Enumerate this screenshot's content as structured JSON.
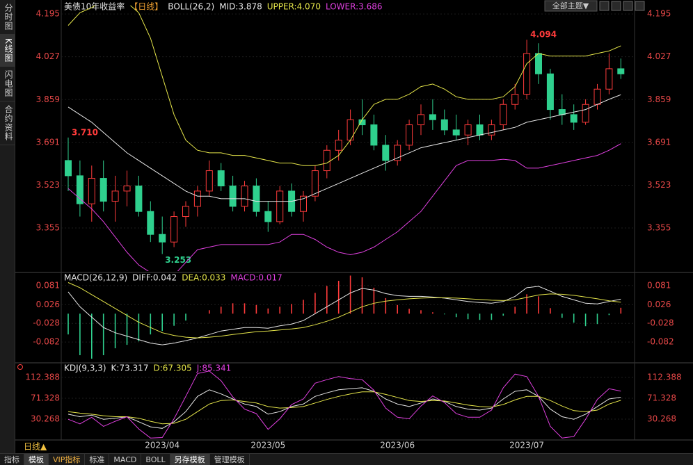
{
  "sidebar": [
    "分时图",
    "K线图",
    "闪电图",
    "合约资料"
  ],
  "toolbar": {
    "theme": "全部主题▼"
  },
  "footer": {
    "period": "日线▲",
    "tabs": [
      "指标",
      "模板",
      "VIP指标",
      "标准",
      "MACD",
      "BOLL",
      "另存模板",
      "管理模板"
    ]
  },
  "chart_data": [
    {
      "type": "candlestick",
      "title": "美债10年收益率",
      "period": "【日线】",
      "indicator": "BOLL(26,2)",
      "up_color": "#ff3b3b",
      "down_color": "#2fd08e",
      "ylim": [
        3.186,
        4.228
      ],
      "yticks": [
        4.195,
        4.027,
        3.859,
        3.691,
        3.523,
        3.355
      ],
      "grid": true,
      "ohlc": [
        [
          3.62,
          3.71,
          3.5,
          3.56
        ],
        [
          3.56,
          3.62,
          3.4,
          3.45
        ],
        [
          3.45,
          3.6,
          3.38,
          3.55
        ],
        [
          3.55,
          3.62,
          3.42,
          3.46
        ],
        [
          3.46,
          3.56,
          3.38,
          3.5
        ],
        [
          3.5,
          3.58,
          3.44,
          3.52
        ],
        [
          3.52,
          3.56,
          3.4,
          3.42
        ],
        [
          3.42,
          3.46,
          3.3,
          3.33
        ],
        [
          3.33,
          3.4,
          3.253,
          3.3
        ],
        [
          3.3,
          3.42,
          3.28,
          3.4
        ],
        [
          3.4,
          3.46,
          3.36,
          3.44
        ],
        [
          3.44,
          3.52,
          3.4,
          3.5
        ],
        [
          3.5,
          3.62,
          3.48,
          3.58
        ],
        [
          3.58,
          3.61,
          3.5,
          3.52
        ],
        [
          3.52,
          3.56,
          3.42,
          3.44
        ],
        [
          3.44,
          3.54,
          3.42,
          3.52
        ],
        [
          3.52,
          3.55,
          3.4,
          3.42
        ],
        [
          3.42,
          3.46,
          3.34,
          3.38
        ],
        [
          3.38,
          3.52,
          3.37,
          3.5
        ],
        [
          3.5,
          3.53,
          3.4,
          3.42
        ],
        [
          3.42,
          3.5,
          3.38,
          3.48
        ],
        [
          3.48,
          3.6,
          3.46,
          3.58
        ],
        [
          3.58,
          3.68,
          3.55,
          3.66
        ],
        [
          3.66,
          3.74,
          3.62,
          3.7
        ],
        [
          3.7,
          3.82,
          3.68,
          3.78
        ],
        [
          3.78,
          3.86,
          3.72,
          3.76
        ],
        [
          3.76,
          3.8,
          3.66,
          3.68
        ],
        [
          3.68,
          3.72,
          3.58,
          3.62
        ],
        [
          3.62,
          3.7,
          3.6,
          3.68
        ],
        [
          3.68,
          3.78,
          3.66,
          3.76
        ],
        [
          3.76,
          3.84,
          3.72,
          3.8
        ],
        [
          3.8,
          3.86,
          3.74,
          3.78
        ],
        [
          3.78,
          3.82,
          3.72,
          3.74
        ],
        [
          3.74,
          3.8,
          3.7,
          3.72
        ],
        [
          3.72,
          3.78,
          3.68,
          3.76
        ],
        [
          3.76,
          3.8,
          3.7,
          3.72
        ],
        [
          3.72,
          3.78,
          3.7,
          3.76
        ],
        [
          3.76,
          3.86,
          3.74,
          3.84
        ],
        [
          3.84,
          3.92,
          3.82,
          3.88
        ],
        [
          3.88,
          4.094,
          3.86,
          4.04
        ],
        [
          4.04,
          4.08,
          3.92,
          3.96
        ],
        [
          3.96,
          3.98,
          3.78,
          3.82
        ],
        [
          3.82,
          3.88,
          3.76,
          3.8
        ],
        [
          3.8,
          3.84,
          3.74,
          3.77
        ],
        [
          3.77,
          3.86,
          3.76,
          3.84
        ],
        [
          3.84,
          3.92,
          3.82,
          3.9
        ],
        [
          3.9,
          4.04,
          3.88,
          3.98
        ],
        [
          3.98,
          4.02,
          3.94,
          3.96
        ]
      ],
      "series": [
        {
          "label": "MID:3.878",
          "color": "#e8e8e8",
          "values": [
            3.83,
            3.8,
            3.77,
            3.73,
            3.69,
            3.65,
            3.62,
            3.59,
            3.56,
            3.53,
            3.5,
            3.48,
            3.48,
            3.47,
            3.47,
            3.47,
            3.46,
            3.46,
            3.46,
            3.46,
            3.47,
            3.49,
            3.51,
            3.53,
            3.55,
            3.57,
            3.59,
            3.61,
            3.63,
            3.65,
            3.67,
            3.68,
            3.69,
            3.7,
            3.71,
            3.72,
            3.73,
            3.74,
            3.75,
            3.77,
            3.78,
            3.79,
            3.8,
            3.81,
            3.82,
            3.84,
            3.86,
            3.878
          ]
        },
        {
          "label": "UPPER:4.070",
          "color": "#e6e64a",
          "values": [
            4.15,
            4.2,
            4.22,
            4.25,
            4.25,
            4.24,
            4.2,
            4.1,
            3.95,
            3.8,
            3.7,
            3.66,
            3.65,
            3.65,
            3.64,
            3.64,
            3.63,
            3.62,
            3.61,
            3.61,
            3.6,
            3.6,
            3.61,
            3.64,
            3.7,
            3.78,
            3.84,
            3.86,
            3.86,
            3.88,
            3.91,
            3.92,
            3.9,
            3.87,
            3.86,
            3.86,
            3.86,
            3.87,
            3.91,
            4.0,
            4.04,
            4.03,
            4.03,
            4.03,
            4.03,
            4.04,
            4.05,
            4.07
          ]
        },
        {
          "label": "LOWER:3.686",
          "color": "#e040e0",
          "values": [
            3.51,
            3.47,
            3.43,
            3.38,
            3.32,
            3.26,
            3.21,
            3.18,
            3.17,
            3.17,
            3.22,
            3.27,
            3.28,
            3.29,
            3.29,
            3.29,
            3.29,
            3.29,
            3.3,
            3.33,
            3.33,
            3.31,
            3.28,
            3.26,
            3.25,
            3.26,
            3.28,
            3.31,
            3.34,
            3.38,
            3.42,
            3.48,
            3.54,
            3.6,
            3.62,
            3.62,
            3.62,
            3.625,
            3.62,
            3.59,
            3.59,
            3.6,
            3.61,
            3.62,
            3.63,
            3.64,
            3.66,
            3.686
          ]
        }
      ],
      "annotations": [
        {
          "value": 4.094,
          "label": "4.094"
        },
        {
          "value": 3.71,
          "label": "3.710"
        },
        {
          "value": 3.253,
          "label": "3.253"
        }
      ]
    },
    {
      "type": "macd",
      "title": "MACD(26,12,9)",
      "ylim": [
        -0.138,
        0.113
      ],
      "yticks": [
        0.081,
        0.026,
        -0.028,
        -0.082
      ],
      "grid": true,
      "up_color": "#ff3b3b",
      "down_color": "#2fd08e",
      "series": [
        {
          "label": "DIFF:0.042",
          "color": "#e8e8e8",
          "values": [
            0.063,
            0.02,
            -0.01,
            -0.04,
            -0.055,
            -0.065,
            -0.075,
            -0.085,
            -0.09,
            -0.085,
            -0.078,
            -0.07,
            -0.06,
            -0.05,
            -0.045,
            -0.04,
            -0.04,
            -0.042,
            -0.035,
            -0.03,
            -0.02,
            0.0,
            0.02,
            0.04,
            0.06,
            0.073,
            0.068,
            0.058,
            0.052,
            0.05,
            0.05,
            0.048,
            0.045,
            0.04,
            0.035,
            0.032,
            0.03,
            0.035,
            0.05,
            0.075,
            0.079,
            0.065,
            0.05,
            0.04,
            0.03,
            0.028,
            0.035,
            0.042
          ]
        },
        {
          "label": "DEA:0.033",
          "color": "#e6e64a",
          "values": [
            0.09,
            0.075,
            0.055,
            0.035,
            0.015,
            -0.005,
            -0.025,
            -0.04,
            -0.055,
            -0.063,
            -0.068,
            -0.07,
            -0.068,
            -0.065,
            -0.06,
            -0.056,
            -0.052,
            -0.05,
            -0.047,
            -0.044,
            -0.04,
            -0.032,
            -0.022,
            -0.01,
            0.005,
            0.02,
            0.03,
            0.036,
            0.04,
            0.043,
            0.045,
            0.046,
            0.046,
            0.045,
            0.043,
            0.041,
            0.039,
            0.038,
            0.04,
            0.047,
            0.054,
            0.057,
            0.056,
            0.053,
            0.048,
            0.043,
            0.037,
            0.033
          ]
        }
      ],
      "bars": {
        "label": "MACD:0.017",
        "color": "#e040e0",
        "values": [
          -0.06,
          -0.12,
          -0.13,
          -0.12,
          -0.1,
          -0.09,
          -0.08,
          -0.06,
          -0.05,
          -0.035,
          -0.02,
          0.0,
          0.01,
          0.02,
          0.03,
          0.03,
          0.025,
          0.015,
          0.02,
          0.028,
          0.04,
          0.06,
          0.08,
          0.095,
          0.11,
          0.105,
          0.075,
          0.045,
          0.025,
          0.014,
          0.01,
          0.004,
          -0.002,
          -0.01,
          -0.016,
          -0.018,
          -0.018,
          -0.006,
          0.02,
          0.056,
          0.05,
          0.016,
          -0.012,
          -0.026,
          -0.036,
          -0.03,
          -0.004,
          0.017
        ]
      }
    },
    {
      "type": "kdj",
      "title": "KDJ(9,3,3)",
      "ylim": [
        -10.8,
        137.0
      ],
      "yticks": [
        112.388,
        71.328,
        30.268
      ],
      "grid": true,
      "categories": [
        null,
        null,
        null,
        null,
        null,
        null,
        null,
        null,
        "2023/04",
        null,
        null,
        null,
        null,
        null,
        null,
        null,
        null,
        "2023/05",
        null,
        null,
        null,
        null,
        null,
        null,
        null,
        null,
        null,
        null,
        "2023/06",
        null,
        null,
        null,
        null,
        null,
        null,
        null,
        null,
        null,
        null,
        "2023/07",
        null,
        null,
        null,
        null,
        null,
        null,
        null,
        null
      ],
      "series": [
        {
          "label": "K:73.317",
          "color": "#e8e8e8",
          "values": [
            40,
            35,
            38,
            30,
            32,
            35,
            25,
            15,
            12,
            25,
            45,
            75,
            88,
            80,
            70,
            60,
            55,
            40,
            45,
            55,
            60,
            75,
            82,
            88,
            90,
            92,
            85,
            70,
            60,
            55,
            62,
            70,
            65,
            55,
            50,
            48,
            52,
            70,
            85,
            88,
            75,
            50,
            35,
            30,
            40,
            55,
            70,
            73.317
          ]
        },
        {
          "label": "D:67.305",
          "color": "#e6e64a",
          "values": [
            45,
            42,
            40,
            37,
            35,
            35,
            32,
            26,
            21,
            22,
            30,
            45,
            60,
            67,
            68,
            65,
            62,
            55,
            52,
            53,
            55,
            62,
            69,
            75,
            80,
            84,
            84,
            79,
            73,
            67,
            65,
            67,
            66,
            62,
            58,
            55,
            54,
            59,
            68,
            75,
            75,
            67,
            56,
            47,
            45,
            48,
            60,
            67.305
          ]
        },
        {
          "label": "J:85.341",
          "color": "#e040e0",
          "values": [
            30,
            21,
            34,
            16,
            26,
            35,
            11,
            -7,
            -6,
            31,
            75,
            120,
            125,
            106,
            74,
            50,
            41,
            10,
            31,
            59,
            70,
            101,
            108,
            114,
            110,
            108,
            87,
            52,
            34,
            31,
            56,
            76,
            63,
            41,
            34,
            34,
            48,
            92,
            119,
            114,
            75,
            16,
            -7,
            -4,
            30,
            69,
            90,
            85.341
          ]
        }
      ]
    }
  ]
}
